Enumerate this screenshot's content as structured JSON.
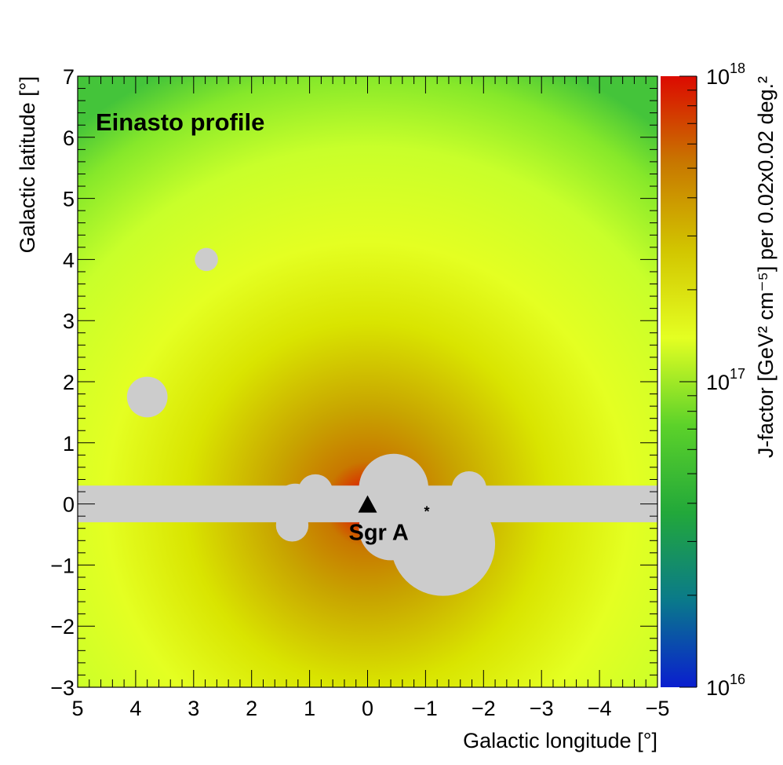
{
  "chart_data": {
    "type": "heatmap",
    "title": "Einasto profile",
    "xlabel": "Galactic longitude [°]",
    "ylabel": "Galactic latitude [°]",
    "zlabel": "J-factor [GeV² cm⁻⁵] per 0.02x0.02 deg.²",
    "xlim": [
      5,
      -5
    ],
    "ylim": [
      -3,
      7
    ],
    "zlim": [
      1e+16,
      1e+18
    ],
    "zscale": "log",
    "x_ticks": [
      "5",
      "4",
      "3",
      "2",
      "1",
      "0",
      "−1",
      "−2",
      "−3",
      "−4",
      "−5"
    ],
    "y_ticks": [
      "−3",
      "−2",
      "−1",
      "0",
      "1",
      "2",
      "3",
      "4",
      "5",
      "6",
      "7"
    ],
    "z_ticks": [
      {
        "value": 1e+16,
        "base": "10",
        "exp": "16"
      },
      {
        "value": 1e+17,
        "base": "10",
        "exp": "17"
      },
      {
        "value": 1e+18,
        "base": "10",
        "exp": "18"
      }
    ],
    "colormap": [
      "#0a1ecf",
      "#0a7a8a",
      "#22a83a",
      "#5cd22a",
      "#e4ff22",
      "#d2c600",
      "#c87800",
      "#dc0a00"
    ],
    "mask_color": "#cccccc",
    "masked_regions": {
      "band": {
        "lat_min": -0.3,
        "lat_max": 0.3
      },
      "circles": [
        {
          "l": 2.78,
          "b": 4.0,
          "r": 0.2
        },
        {
          "l": 3.8,
          "b": 1.75,
          "r": 0.35
        },
        {
          "l": 0.9,
          "b": 0.2,
          "r": 0.3
        },
        {
          "l": 1.25,
          "b": 0.0,
          "r": 0.35
        },
        {
          "l": 1.3,
          "b": -0.35,
          "r": 0.28
        },
        {
          "l": -0.45,
          "b": 0.25,
          "r": 0.6
        },
        {
          "l": -0.4,
          "b": -0.4,
          "r": 0.55
        },
        {
          "l": -1.3,
          "b": -0.65,
          "r": 0.9
        },
        {
          "l": -1.75,
          "b": 0.25,
          "r": 0.3
        }
      ]
    },
    "marker": {
      "label": "Sgr A",
      "sup": "*",
      "l": 0.0,
      "b": 0.0,
      "symbol": "triangle"
    }
  }
}
